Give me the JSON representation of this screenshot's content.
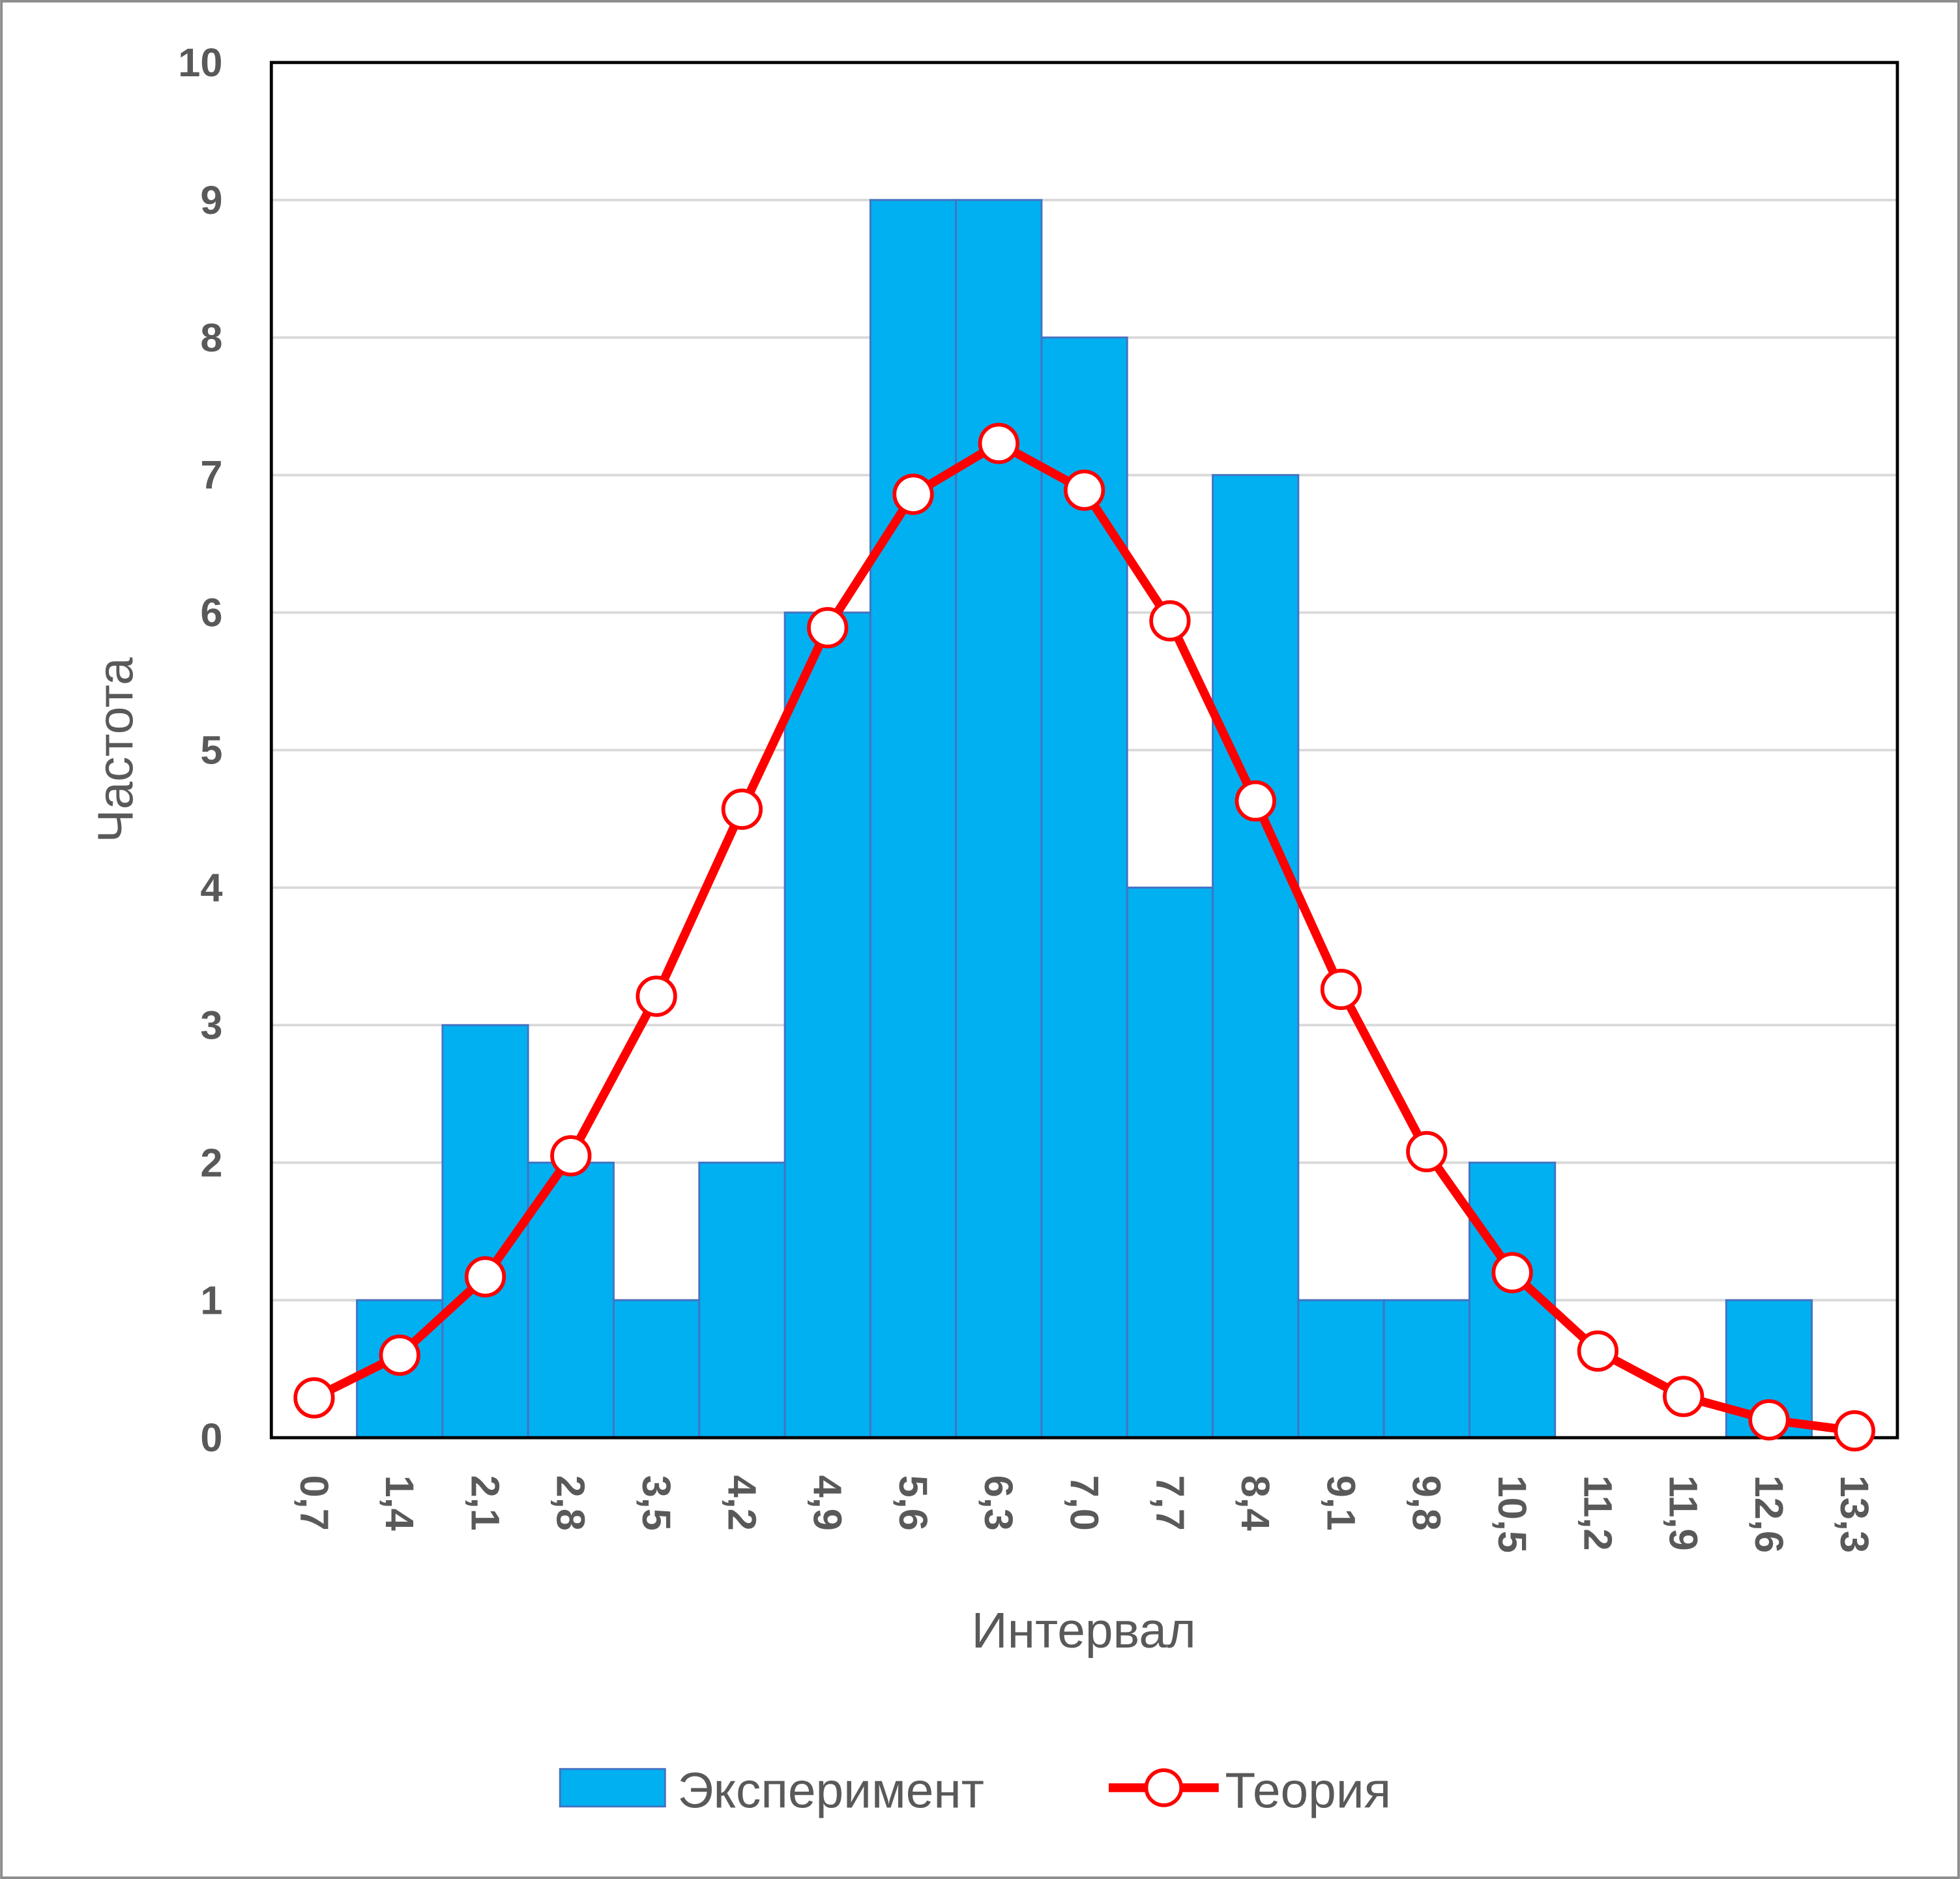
{
  "chart_data": {
    "type": "bar+line",
    "xlabel": "Интервал",
    "ylabel": "Частота",
    "ylim": [
      0,
      10
    ],
    "yticks": [
      "0",
      "1",
      "2",
      "3",
      "4",
      "5",
      "6",
      "7",
      "8",
      "9",
      "10"
    ],
    "categories": [
      "0,7",
      "1,4",
      "2,1",
      "2,8",
      "3,5",
      "4,2",
      "4,9",
      "5,6",
      "6,3",
      "7,0",
      "7,7",
      "8,4",
      "9,1",
      "9,8",
      "10,5",
      "11,2",
      "11,9",
      "12,6",
      "13,3"
    ],
    "grid": true,
    "legend_position": "bottom",
    "series": [
      {
        "name": "Эксперимент",
        "type": "bar",
        "color": "#00B0F0",
        "values": [
          0,
          1,
          3,
          2,
          1,
          2,
          6,
          9,
          9,
          8,
          4,
          7,
          1,
          1,
          2,
          0,
          0,
          1,
          0
        ]
      },
      {
        "name": "Теория",
        "type": "line",
        "color": "#FF0000",
        "values": [
          0.29,
          0.6,
          1.17,
          2.05,
          3.21,
          4.57,
          5.89,
          6.86,
          7.23,
          6.89,
          5.94,
          4.63,
          3.26,
          2.08,
          1.2,
          0.63,
          0.3,
          0.13,
          0.05
        ]
      }
    ]
  }
}
